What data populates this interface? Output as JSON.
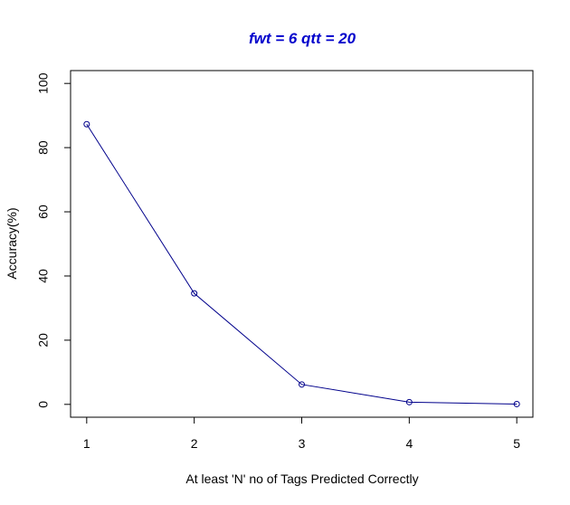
{
  "colors": {
    "title": "#0000cc",
    "series": "#00008b",
    "axis": "#000000",
    "background": "#ffffff"
  },
  "chart_data": {
    "type": "line",
    "title": "fwt = 6   qtt = 20",
    "xlabel": "At least 'N' no of Tags Predicted Correctly",
    "ylabel": "Accuracy(%)",
    "x": [
      1,
      2,
      3,
      4,
      5
    ],
    "series": [
      {
        "values": [
          87.3,
          34.6,
          6.2,
          0.7,
          0.1
        ]
      }
    ],
    "xlim": [
      0.85,
      5.15
    ],
    "ylim": [
      -4,
      104
    ],
    "xticks": [
      1,
      2,
      3,
      4,
      5
    ],
    "yticks": [
      0,
      20,
      40,
      60,
      80,
      100
    ],
    "markers": "open-circle",
    "grid": false,
    "legend": "none"
  }
}
